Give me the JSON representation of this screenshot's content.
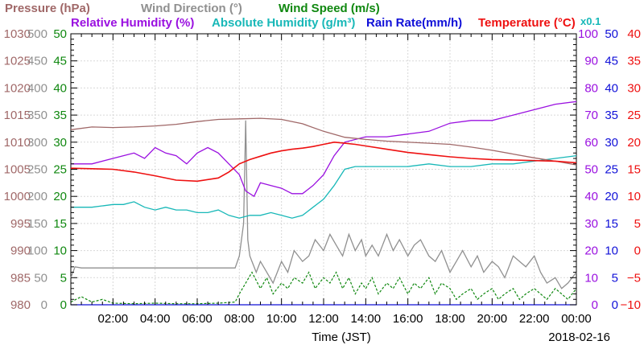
{
  "chart_data": {
    "type": "line",
    "date_label": "2018-02-16",
    "xlabel": "Time (JST)",
    "x_ticks": [
      "02:00",
      "04:00",
      "06:00",
      "08:00",
      "10:00",
      "12:00",
      "14:00",
      "16:00",
      "18:00",
      "20:00",
      "22:00",
      "00:00"
    ],
    "xlim_hours": [
      0,
      24
    ],
    "grid": true,
    "title_row1": [
      {
        "text": "Pressure (hPa)",
        "color": "#a06868"
      },
      {
        "text": "Wind Direction (°)",
        "color": "#909090"
      },
      {
        "text": "Wind Speed (m/s)",
        "color": "#108810"
      }
    ],
    "title_row2": [
      {
        "text": "Relative Humidity (%)",
        "color": "#9a10e0"
      },
      {
        "text": "Absolute Humidity (g/m³)",
        "color": "#18b8b8"
      },
      {
        "text": "Rain Rate(mm/h)",
        "color": "#1010d8"
      },
      {
        "text": "Temperature (°C)",
        "color": "#ee1010"
      }
    ],
    "x01_label": "x0.1",
    "axes": {
      "pressure": {
        "color": "#a06868",
        "range": [
          980,
          1030
        ],
        "ticks": [
          "980",
          "985",
          "990",
          "995",
          "1000",
          "1005",
          "1010",
          "1015",
          "1020",
          "1025",
          "1030"
        ]
      },
      "wind_direction": {
        "color": "#909090",
        "range": [
          0,
          500
        ],
        "ticks": [
          "0",
          "50",
          "100",
          "150",
          "200",
          "250",
          "300",
          "350",
          "400",
          "450",
          "500"
        ]
      },
      "wind_speed": {
        "color": "#108810",
        "range": [
          0,
          50
        ],
        "ticks": [
          "0",
          "5",
          "10",
          "15",
          "20",
          "25",
          "30",
          "35",
          "40",
          "45",
          "50"
        ]
      },
      "humidity": {
        "color": "#9a10e0",
        "range": [
          0,
          100
        ],
        "ticks": [
          "0",
          "10",
          "20",
          "30",
          "40",
          "50",
          "60",
          "70",
          "80",
          "90",
          "100"
        ]
      },
      "rain_rate": {
        "color": "#1010d8",
        "range": [
          0,
          50
        ],
        "ticks": [
          "0",
          "5",
          "10",
          "15",
          "20",
          "25",
          "30",
          "35",
          "40",
          "45",
          "50"
        ]
      },
      "temperature": {
        "color": "#ee1010",
        "range": [
          -10,
          40
        ],
        "ticks": [
          "−10",
          "−5",
          "0",
          "5",
          "10",
          "15",
          "20",
          "25",
          "30",
          "35",
          "40"
        ]
      }
    },
    "series": [
      {
        "name": "Pressure (hPa)",
        "axis": "pressure",
        "color": "#a06868",
        "x": [
          0,
          1,
          2,
          3,
          4,
          5,
          6,
          7,
          8,
          9,
          10,
          11,
          12,
          13,
          14,
          15,
          16,
          17,
          18,
          19,
          20,
          21,
          22,
          23,
          24
        ],
        "y": [
          1012.3,
          1012.8,
          1012.7,
          1012.8,
          1013.0,
          1013.3,
          1013.8,
          1014.2,
          1014.3,
          1014.4,
          1014.2,
          1013.4,
          1012.0,
          1010.9,
          1010.5,
          1010.2,
          1010.0,
          1009.8,
          1009.6,
          1009.1,
          1008.5,
          1007.8,
          1007.1,
          1006.5,
          1005.8
        ]
      },
      {
        "name": "Relative Humidity (%)",
        "axis": "humidity",
        "color": "#9a10e0",
        "x": [
          0,
          1,
          2,
          2.5,
          3,
          3.5,
          4,
          4.5,
          5,
          5.5,
          6,
          6.5,
          7,
          7.5,
          8,
          8.3,
          8.7,
          9,
          9.5,
          10,
          10.5,
          11,
          11.5,
          12,
          12.5,
          13,
          14,
          15,
          16,
          17,
          18,
          19,
          20,
          21,
          22,
          23,
          24
        ],
        "y": [
          52,
          52,
          54,
          55,
          56,
          54,
          58,
          56,
          55,
          52,
          56,
          58,
          56,
          52,
          48,
          42,
          40,
          45,
          44,
          43,
          41,
          41,
          44,
          48,
          55,
          60,
          62,
          62,
          63,
          64,
          67,
          68,
          68,
          70,
          72,
          74,
          75
        ]
      },
      {
        "name": "Absolute Humidity (g/m³)",
        "axis": "humidity",
        "color": "#18b8b8",
        "x": [
          0,
          1,
          2,
          2.5,
          3,
          3.5,
          4,
          4.5,
          5,
          5.5,
          6,
          6.5,
          7,
          7.5,
          8,
          8.5,
          9,
          9.5,
          10,
          10.5,
          11,
          11.5,
          12,
          12.5,
          13,
          13.5,
          14,
          15,
          16,
          17,
          18,
          19,
          20,
          21,
          22,
          23,
          24
        ],
        "y": [
          36,
          36,
          37,
          37,
          38,
          36,
          35,
          36,
          35,
          35,
          34,
          34,
          35,
          33,
          32,
          33,
          33,
          34,
          33,
          32,
          33,
          36,
          39,
          44,
          50,
          51,
          51,
          51,
          51,
          52,
          51,
          51,
          52,
          52,
          53,
          54,
          55
        ]
      },
      {
        "name": "Temperature (°C)",
        "axis": "temperature",
        "color": "#ee1010",
        "x": [
          0,
          1,
          2,
          3,
          4,
          5,
          6,
          7,
          7.5,
          8,
          8.5,
          9,
          9.5,
          10,
          10.5,
          11,
          11.5,
          12,
          12.5,
          13,
          13.5,
          14,
          15,
          16,
          17,
          18,
          19,
          20,
          21,
          22,
          23,
          24
        ],
        "y": [
          15.2,
          15.1,
          15.0,
          14.5,
          13.8,
          13.0,
          12.8,
          13.4,
          14.5,
          16.0,
          16.8,
          17.4,
          18.0,
          18.4,
          18.7,
          18.9,
          19.2,
          19.6,
          20.0,
          19.8,
          19.6,
          19.3,
          18.7,
          18.1,
          17.7,
          17.3,
          17.0,
          16.8,
          16.7,
          16.6,
          16.5,
          16.2
        ]
      },
      {
        "name": "Wind Direction (°)",
        "axis": "wind_direction",
        "color": "#909090",
        "x": [
          0,
          0.2,
          0.5,
          1,
          2,
          3,
          4,
          5,
          6,
          7,
          7.8,
          8.0,
          8.2,
          8.3,
          8.4,
          8.5,
          8.6,
          8.8,
          9,
          9.3,
          9.6,
          10,
          10.3,
          10.6,
          11,
          11.3,
          11.6,
          12,
          12.3,
          12.6,
          12.9,
          13.2,
          13.5,
          13.8,
          14,
          14.3,
          14.6,
          15,
          15.3,
          15.6,
          16,
          16.3,
          16.6,
          17,
          17.3,
          17.6,
          18,
          18.3,
          18.6,
          19,
          19.3,
          19.6,
          20,
          20.3,
          20.6,
          21,
          21.3,
          21.6,
          22,
          22.3,
          22.6,
          23,
          23.3,
          23.6,
          24
        ],
        "y": [
          50,
          70,
          68,
          68,
          68,
          68,
          68,
          68,
          68,
          68,
          68,
          90,
          150,
          340,
          120,
          90,
          80,
          60,
          80,
          60,
          40,
          80,
          60,
          100,
          80,
          90,
          120,
          100,
          130,
          110,
          90,
          130,
          100,
          120,
          90,
          110,
          90,
          130,
          100,
          120,
          90,
          110,
          120,
          90,
          80,
          100,
          60,
          80,
          100,
          70,
          90,
          60,
          80,
          70,
          50,
          90,
          80,
          70,
          90,
          60,
          40,
          50,
          30,
          40,
          60
        ]
      },
      {
        "name": "Wind Speed (m/s)",
        "axis": "wind_speed",
        "color": "#108810",
        "x": [
          0,
          0.5,
          1,
          1.5,
          2,
          3,
          4,
          5,
          6,
          7,
          7.8,
          8.0,
          8.3,
          8.6,
          9,
          9.3,
          9.6,
          10,
          10.3,
          10.6,
          11,
          11.3,
          11.6,
          12,
          12.3,
          12.6,
          12.9,
          13.2,
          13.5,
          13.8,
          14,
          14.3,
          14.6,
          15,
          15.3,
          15.6,
          16,
          16.3,
          16.6,
          17,
          17.3,
          17.6,
          18,
          18.3,
          18.6,
          19,
          19.3,
          19.6,
          20,
          20.3,
          20.6,
          21,
          21.3,
          21.6,
          22,
          22.3,
          22.6,
          23,
          23.3,
          23.6,
          24
        ],
        "y": [
          0.5,
          1.5,
          0.5,
          1,
          0.3,
          0.2,
          0.3,
          0.2,
          0.2,
          0.3,
          0.5,
          2,
          4,
          6,
          3,
          5,
          2,
          4,
          3,
          5,
          4,
          6,
          3,
          5,
          4,
          6,
          3,
          5,
          2,
          4,
          3,
          5,
          2,
          4,
          3,
          5,
          2,
          4,
          3,
          5,
          2,
          4,
          3,
          1,
          2,
          3,
          1,
          2,
          3,
          1,
          2,
          3,
          1,
          2,
          3,
          2,
          1,
          3,
          2,
          1,
          3
        ]
      },
      {
        "name": "Rain Rate(mm/h)",
        "axis": "rain_rate",
        "color": "#1010d8",
        "x": [
          0,
          24
        ],
        "y": [
          0,
          0
        ]
      }
    ]
  }
}
